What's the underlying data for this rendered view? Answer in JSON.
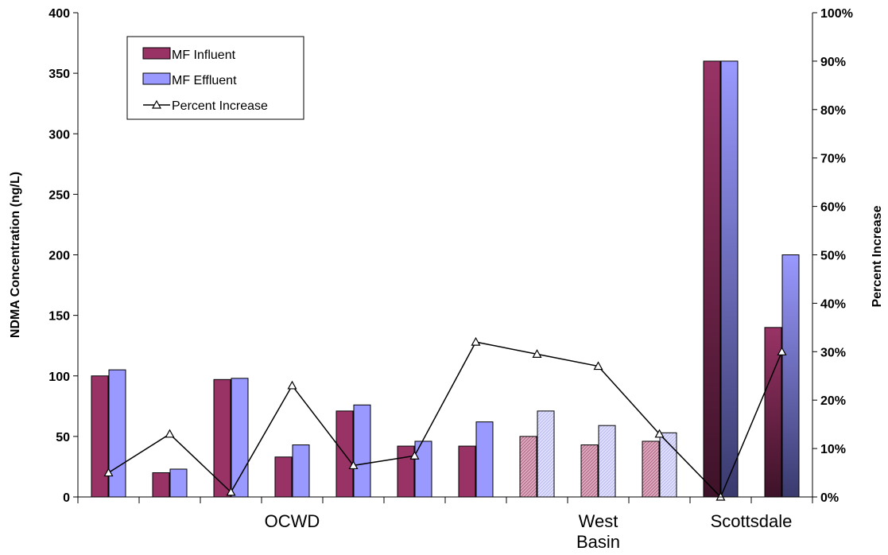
{
  "chart_data": {
    "type": "bar",
    "ylabel": "NDMA Concentration (ng/L)",
    "y2label": "Percent Increase",
    "ylim": [
      0,
      400
    ],
    "y2lim": [
      0,
      100
    ],
    "yticks": [
      "0",
      "50",
      "100",
      "150",
      "200",
      "250",
      "300",
      "350",
      "400"
    ],
    "y2ticks": [
      "0%",
      "10%",
      "20%",
      "30%",
      "40%",
      "50%",
      "60%",
      "70%",
      "80%",
      "90%",
      "100%"
    ],
    "groups": [
      {
        "label": "OCWD",
        "from": 0,
        "to": 6
      },
      {
        "label": "West Basin",
        "from": 7,
        "to": 9
      },
      {
        "label": "Scottsdale",
        "from": 10,
        "to": 11
      }
    ],
    "legend": {
      "position": "top-left",
      "items": [
        "MF Influent",
        "MF Effluent",
        "Percent Increase"
      ]
    },
    "grid": false,
    "series": [
      {
        "name": "MF Influent",
        "type": "bar",
        "axis": "left",
        "color": "#993366",
        "values": [
          100,
          20,
          97,
          33,
          71,
          42,
          42,
          50,
          43,
          46,
          360,
          140
        ]
      },
      {
        "name": "MF Effluent",
        "type": "bar",
        "axis": "left",
        "color": "#9999FF",
        "values": [
          105,
          23,
          98,
          43,
          76,
          46,
          62,
          71,
          59,
          53,
          360,
          200
        ]
      },
      {
        "name": "Percent Increase",
        "type": "line",
        "axis": "right",
        "color": "#000000",
        "marker": "triangle",
        "values": [
          5,
          13,
          1,
          23,
          6.5,
          8.5,
          32,
          29.5,
          27,
          13,
          0,
          30
        ]
      }
    ],
    "bar_styles": [
      "solid",
      "solid",
      "solid",
      "solid",
      "solid",
      "solid",
      "solid",
      "hatched",
      "hatched",
      "hatched",
      "gradient",
      "gradient"
    ]
  }
}
